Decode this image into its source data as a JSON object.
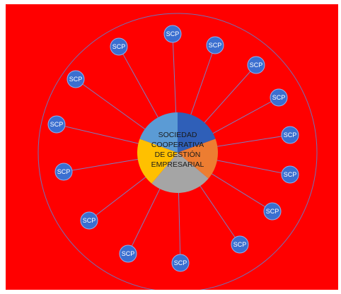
{
  "diagram": {
    "center_text": [
      "SOCIEDAD",
      "COOPERATIVA",
      "DE GESTIÓN",
      "EMPRESARIAL"
    ],
    "center_segment_colors": [
      "#2f5fb8",
      "#ed7d31",
      "#a5a5a5",
      "#ffc000",
      "#5b9bd5"
    ],
    "node_fill": "#3b6fd0",
    "node_stroke": "#8fb0f0",
    "spoke_color": "#7a7fc2",
    "ring_color": "#6f73b8",
    "background": "#ff0000",
    "nodes": [
      {
        "label": "SCP"
      },
      {
        "label": "SCP"
      },
      {
        "label": "SCP"
      },
      {
        "label": "SCP"
      },
      {
        "label": "SCP"
      },
      {
        "label": "SCP"
      },
      {
        "label": "SCP"
      },
      {
        "label": "SCP"
      },
      {
        "label": "SCP"
      },
      {
        "label": "SCP"
      },
      {
        "label": "SCP"
      },
      {
        "label": "SCP"
      },
      {
        "label": "SCP"
      },
      {
        "label": "SCP"
      },
      {
        "label": "SCP"
      },
      {
        "label": "SCP"
      },
      {
        "label": "SCP"
      }
    ]
  }
}
